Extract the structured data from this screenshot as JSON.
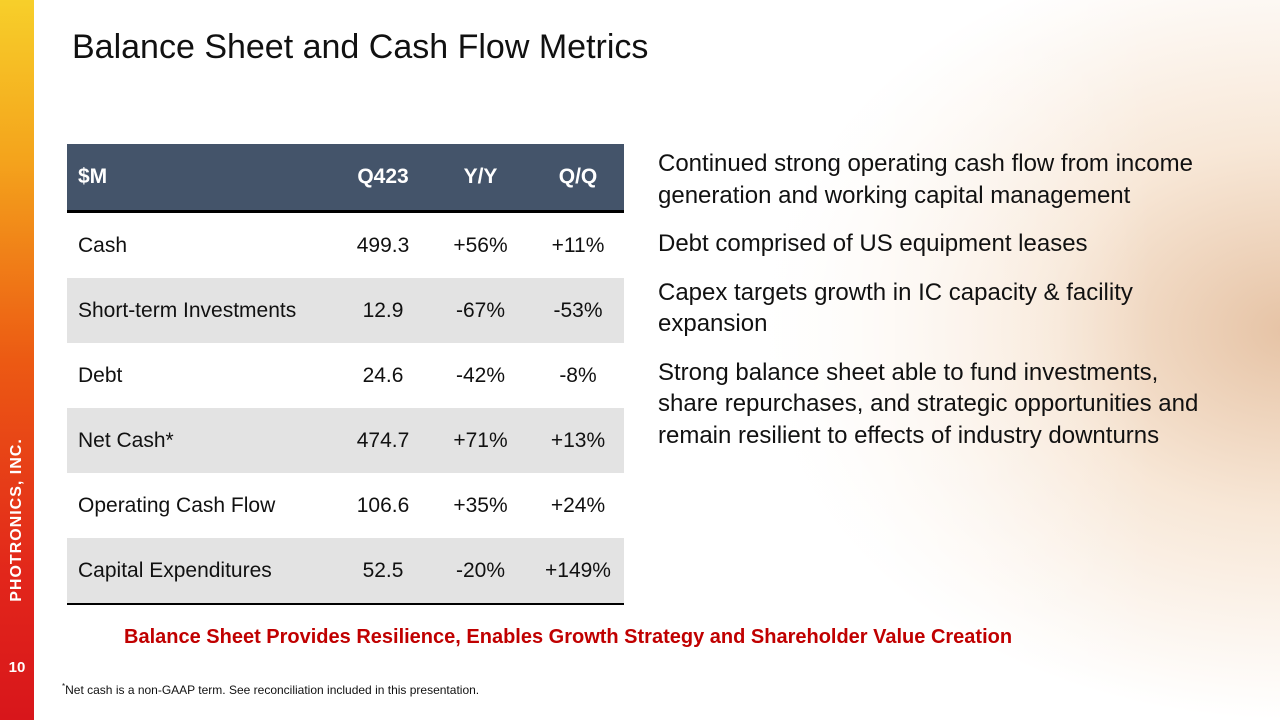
{
  "slide": {
    "title": "Balance Sheet and Cash Flow Metrics",
    "page_number": "10",
    "brand": "PHOTRONICS, INC."
  },
  "table": {
    "headers": [
      "$M",
      "Q423",
      "Y/Y",
      "Q/Q"
    ],
    "rows": [
      {
        "label": "Cash",
        "q423": "499.3",
        "yy": "+56%",
        "qq": "+11%"
      },
      {
        "label": "Short-term Investments",
        "q423": "12.9",
        "yy": "-67%",
        "qq": "-53%"
      },
      {
        "label": "Debt",
        "q423": "24.6",
        "yy": "-42%",
        "qq": "-8%"
      },
      {
        "label": "Net Cash*",
        "q423": "474.7",
        "yy": "+71%",
        "qq": "+13%"
      },
      {
        "label": "Operating Cash Flow",
        "q423": "106.6",
        "yy": "+35%",
        "qq": "+24%"
      },
      {
        "label": "Capital Expenditures",
        "q423": "52.5",
        "yy": "-20%",
        "qq": "+149%"
      }
    ]
  },
  "bullets": [
    "Continued strong operating cash flow from income generation and working capital management",
    "Debt comprised of US equipment leases",
    "Capex targets growth in IC capacity & facility expansion",
    "Strong balance sheet able to fund investments, share repurchases, and strategic opportunities and remain resilient to effects of industry downturns"
  ],
  "tagline": "Balance Sheet Provides Resilience, Enables Growth Strategy and Shareholder Value Creation",
  "footnote": {
    "marker": "*",
    "text": "Net cash is a non-GAAP term. See reconciliation included in this presentation."
  },
  "colors": {
    "header_fill": "#44546a",
    "tagline": "#c00000",
    "row_stripe": "#e3e3e3",
    "side_bar_top": "#f7cf2a",
    "side_bar_bottom": "#d8161b"
  }
}
